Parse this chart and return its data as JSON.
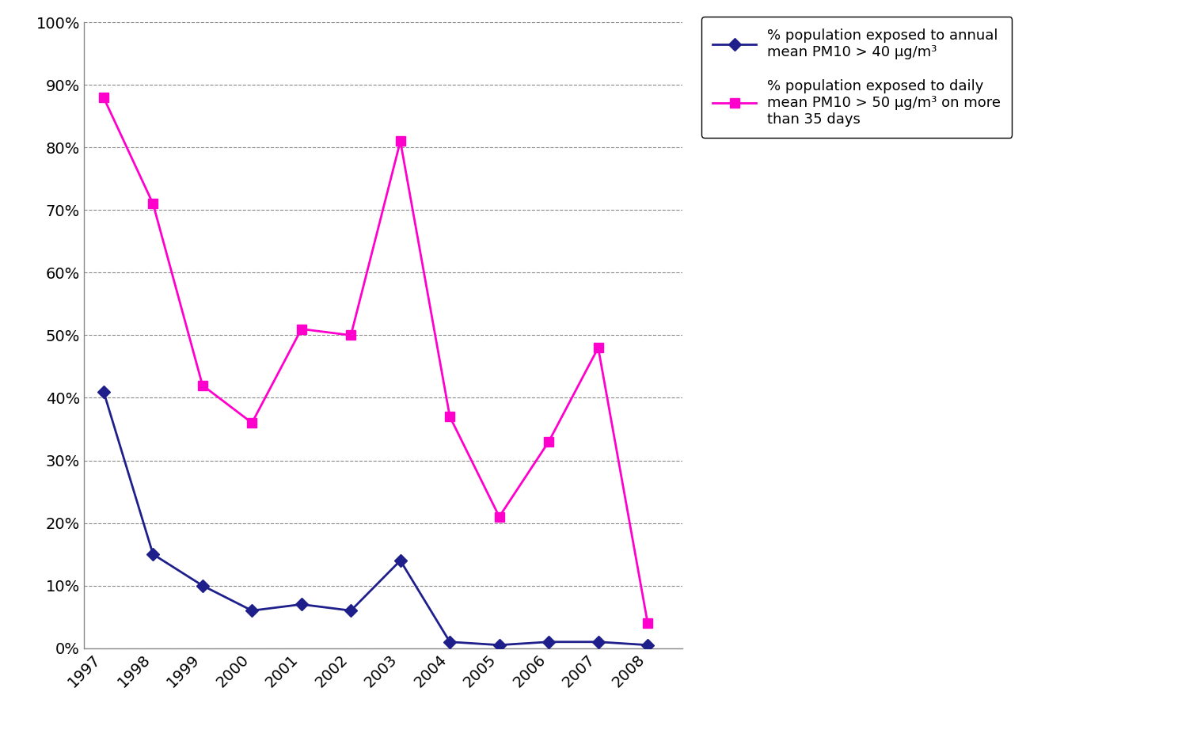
{
  "years": [
    1997,
    1998,
    1999,
    2000,
    2001,
    2002,
    2003,
    2004,
    2005,
    2006,
    2007,
    2008
  ],
  "blue_values": [
    0.41,
    0.15,
    0.1,
    0.06,
    0.07,
    0.06,
    0.14,
    0.01,
    0.005,
    0.01,
    0.01,
    0.005
  ],
  "pink_values": [
    0.88,
    0.71,
    0.42,
    0.36,
    0.51,
    0.5,
    0.81,
    0.37,
    0.21,
    0.33,
    0.48,
    0.04
  ],
  "blue_color": "#1F1F8B",
  "pink_color": "#FF00CC",
  "blue_label_line1": "% population exposed to annual",
  "blue_label_line2": "mean PM10 > 40 μg/m³",
  "pink_label_line1": "% population exposed to daily",
  "pink_label_line2": "mean PM10 > 50 μg/m³ on more",
  "pink_label_line3": "than 35 days",
  "ylim": [
    0.0,
    1.0
  ],
  "yticks": [
    0.0,
    0.1,
    0.2,
    0.3,
    0.4,
    0.5,
    0.6,
    0.7,
    0.8,
    0.9,
    1.0
  ],
  "ytick_labels": [
    "0%",
    "10%",
    "20%",
    "30%",
    "40%",
    "50%",
    "60%",
    "70%",
    "80%",
    "90%",
    "100%"
  ],
  "background_color": "#ffffff",
  "grid_color": "#888888",
  "spine_color": "#888888",
  "tick_fontsize": 14,
  "legend_fontsize": 13
}
